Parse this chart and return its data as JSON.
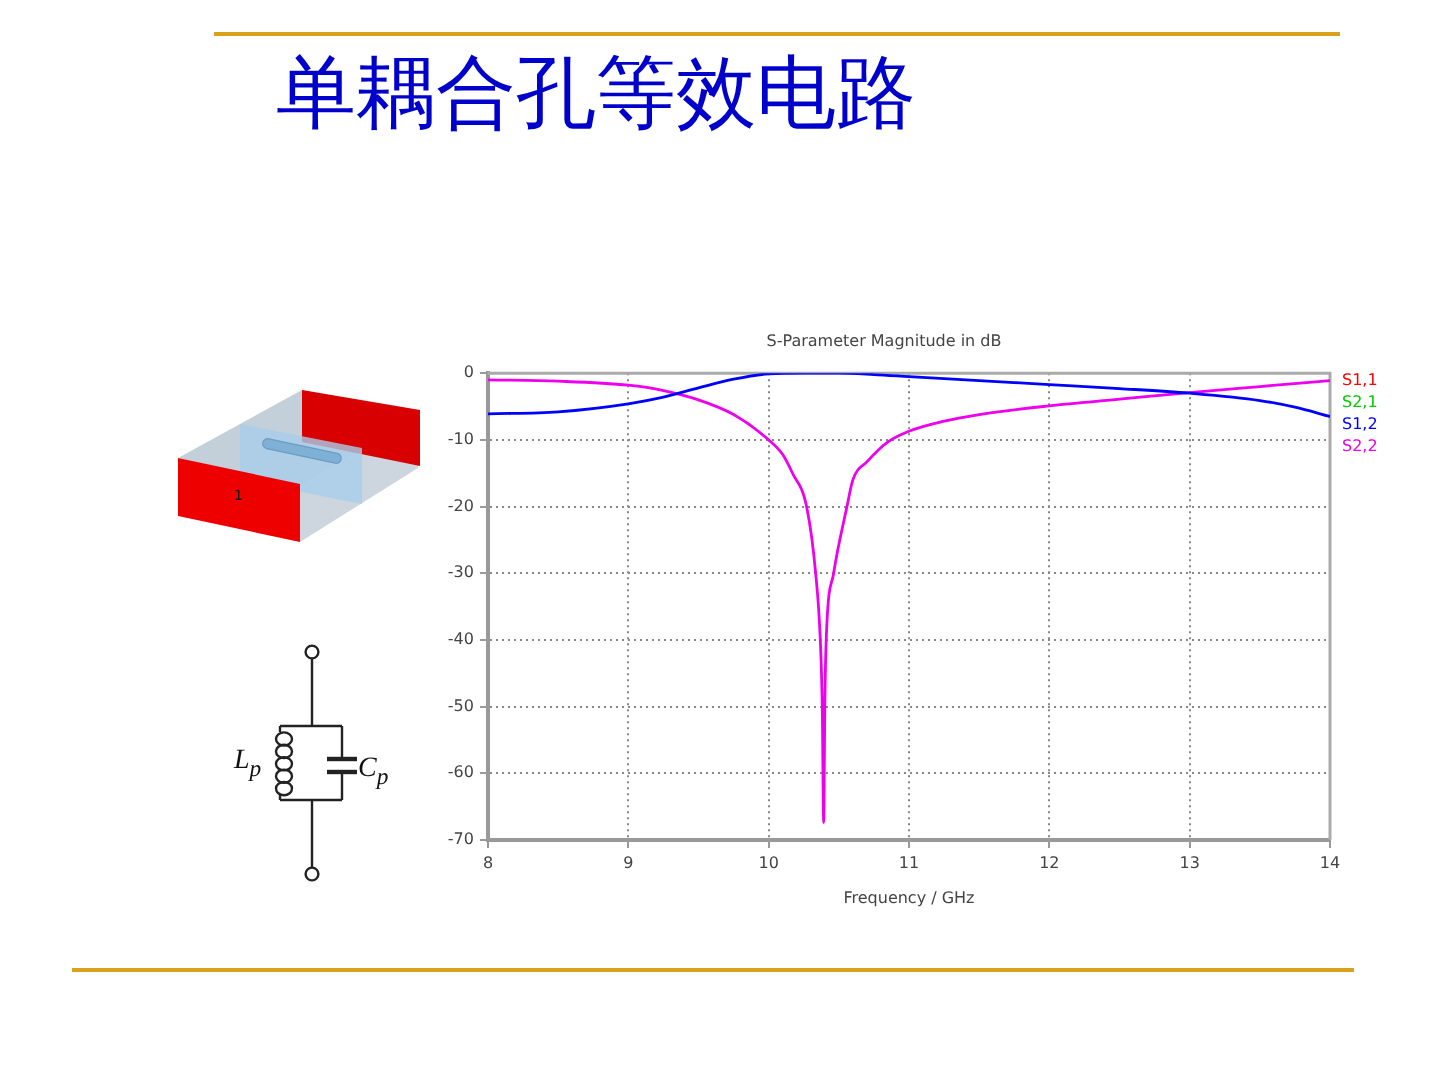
{
  "chart_data": {
    "type": "line",
    "title": "单耦合孔等效电路",
    "subtitle": "S-Parameter Magnitude in dB",
    "xlabel": "Frequency / GHz",
    "x": [
      8,
      8.5,
      9,
      9.25,
      9.5,
      9.75,
      10,
      10.25,
      10.5,
      10.75,
      11,
      11.5,
      12,
      12.5,
      13,
      13.5,
      13.75,
      14
    ],
    "series": [
      {
        "name": "S1,1",
        "color": "#ff0000",
        "values": [
          null,
          null,
          null,
          null,
          null,
          null,
          null,
          null,
          null,
          null,
          null,
          null,
          null,
          null,
          null,
          null,
          null,
          null
        ]
      },
      {
        "name": "S2,1",
        "color": "#00cc00",
        "values": [
          null,
          null,
          null,
          null,
          null,
          null,
          null,
          null,
          null,
          null,
          null,
          null,
          null,
          null,
          null,
          null,
          null,
          null
        ]
      },
      {
        "name": "S1,2",
        "color": "#0000ff",
        "values": [
          -6.1,
          -5.8,
          -4.6,
          -3.6,
          -2.2,
          -0.9,
          -0.1,
          0,
          0,
          -0.2,
          -0.5,
          -1.1,
          -1.7,
          -2.3,
          -3.0,
          -4.1,
          -5.1,
          -6.5
        ]
      },
      {
        "name": "S2,2",
        "color": "#ee00ee",
        "x": [
          8,
          8.5,
          9,
          9.25,
          9.5,
          9.75,
          10,
          10.1,
          10.17,
          10.27,
          10.335,
          10.368,
          10.382,
          10.392,
          10.4,
          10.41,
          10.463,
          10.558,
          10.6,
          10.7,
          10.85,
          11,
          11.25,
          11.5,
          12,
          12.5,
          13,
          13.5,
          14
        ],
        "values": [
          -1.0,
          -1.2,
          -1.8,
          -2.6,
          -4.0,
          -6.2,
          -10.0,
          -12.2,
          -15.0,
          -20.0,
          -30,
          -40,
          -50,
          -67.4,
          -50,
          -40,
          -30,
          -20,
          -16.0,
          -13.3,
          -10.3,
          -8.7,
          -7.2,
          -6.2,
          -4.9,
          -3.9,
          -2.9,
          -2.0,
          -1.1
        ]
      }
    ],
    "xlim": [
      8,
      14
    ],
    "xticks": [
      8,
      9,
      10,
      11,
      12,
      13,
      14
    ],
    "ylim": [
      -70,
      0
    ],
    "yticks": [
      -70,
      -60,
      -50,
      -40,
      -30,
      -20,
      -10,
      0
    ],
    "grid": true,
    "legend": "right",
    "marker": "none",
    "annotations": [
      "L$_{p}$",
      "C$_{p}$",
      "1"
    ]
  }
}
